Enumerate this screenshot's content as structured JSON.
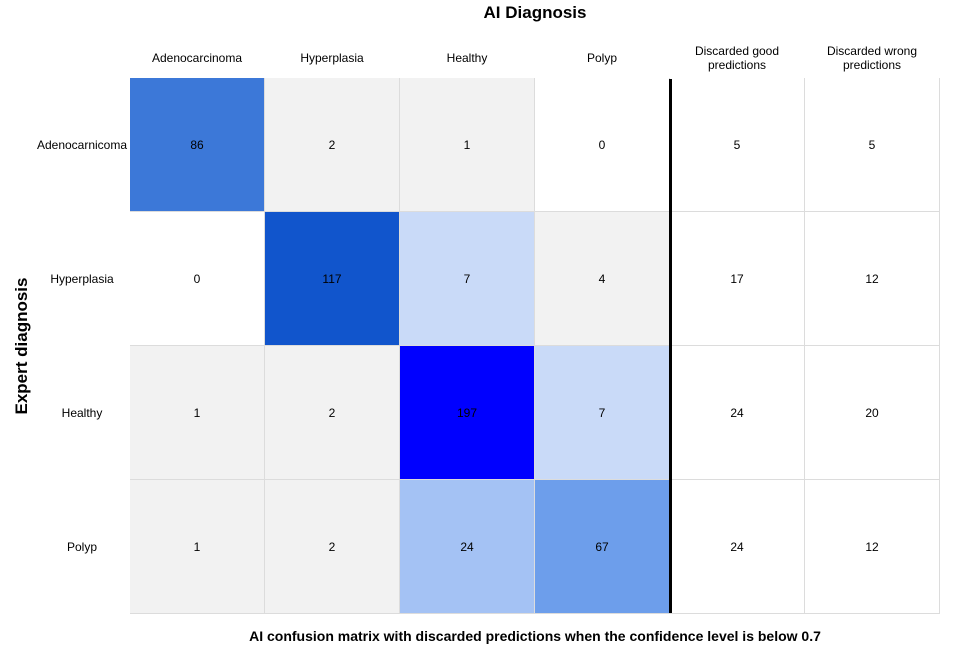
{
  "chart_data": {
    "type": "heatmap",
    "title": "AI Diagnosis",
    "xlabel": "AI Diagnosis",
    "ylabel": "Expert diagnosis",
    "caption": "AI confusion matrix with discarded predictions when the confidence level is below 0.7",
    "columns": [
      "Adenocarcinoma",
      "Hyperplasia",
      "Healthy",
      "Polyp",
      "Discarded good predictions",
      "Discarded wrong predictions"
    ],
    "rows": [
      "Adenocarnicoma",
      "Hyperplasia",
      "Healthy",
      "Polyp"
    ],
    "values": [
      [
        86,
        2,
        1,
        0,
        5,
        5
      ],
      [
        0,
        117,
        7,
        4,
        17,
        12
      ],
      [
        1,
        2,
        197,
        7,
        24,
        20
      ],
      [
        1,
        2,
        24,
        67,
        24,
        12
      ]
    ],
    "cell_colors": [
      [
        "#3c78d8",
        "#f2f2f2",
        "#f2f2f2",
        "#ffffff",
        "#ffffff",
        "#ffffff"
      ],
      [
        "#ffffff",
        "#1155cc",
        "#c9daf8",
        "#f2f2f2",
        "#ffffff",
        "#ffffff"
      ],
      [
        "#f2f2f2",
        "#f2f2f2",
        "#0000ff",
        "#c9daf8",
        "#ffffff",
        "#ffffff"
      ],
      [
        "#f2f2f2",
        "#f2f2f2",
        "#a4c2f4",
        "#6d9eeb",
        "#ffffff",
        "#ffffff"
      ]
    ],
    "divider_after_column": 4
  }
}
